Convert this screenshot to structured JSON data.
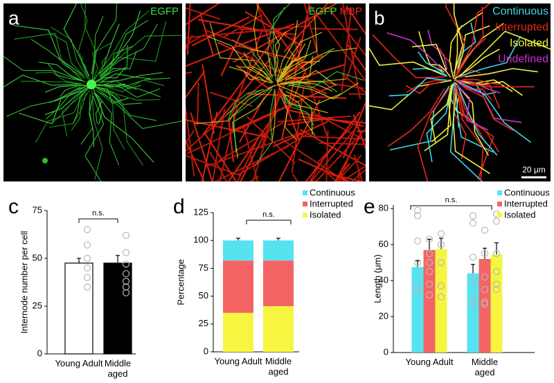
{
  "images": {
    "panel_a": "a",
    "a_label": "EGFP",
    "a_label_color": "#3ee03e",
    "merge_labels": [
      {
        "text": "EGFP",
        "color": "#3ee03e"
      },
      {
        "text": "MBP",
        "color": "#e8281e"
      }
    ],
    "panel_b": "b",
    "b_legend": [
      {
        "text": "Continuous",
        "color": "#3fd8e8"
      },
      {
        "text": "Interrupted",
        "color": "#e8281e"
      },
      {
        "text": "Isolated",
        "color": "#f0f040"
      },
      {
        "text": "Undefined",
        "color": "#d030d0"
      }
    ],
    "scale_bar": "20 μm"
  },
  "chart_data": [
    {
      "panel": "c",
      "type": "bar",
      "ylabel": "Internode number per cell",
      "categories": [
        "Young Adult",
        "Middle aged"
      ],
      "values": [
        47.5,
        47.5
      ],
      "errors": [
        2.5,
        4
      ],
      "colors": [
        "#ffffff",
        "#000000"
      ],
      "edgecolor": "#000000",
      "points": [
        [
          65,
          57,
          50,
          45,
          40,
          35
        ],
        [
          62,
          53,
          47,
          42,
          38,
          35,
          32
        ]
      ],
      "ylim": [
        0,
        75
      ],
      "yticks": [
        0,
        25,
        50,
        75
      ],
      "annotation": "n.s."
    },
    {
      "panel": "d",
      "type": "stacked_bar",
      "ylabel": "Percentage",
      "categories": [
        "Young Adult",
        "Middle aged"
      ],
      "series": [
        {
          "name": "Continuous",
          "color": "#55e3f2",
          "values": [
            18,
            18
          ],
          "errors": [
            2,
            2
          ]
        },
        {
          "name": "Interrupted",
          "color": "#f56464",
          "values": [
            47,
            41
          ],
          "errors": [
            1.5,
            1.5
          ]
        },
        {
          "name": "Isolated",
          "color": "#f6f641",
          "values": [
            35,
            41
          ],
          "errors": [
            2,
            3
          ]
        }
      ],
      "stack_order": [
        2,
        1,
        0
      ],
      "ylim": [
        0,
        125
      ],
      "yticks": [
        0,
        25,
        50,
        75,
        100,
        125
      ],
      "annotation": "n.s."
    },
    {
      "panel": "e",
      "type": "grouped_bar",
      "ylabel": "Length (μm)",
      "categories": [
        "Young Adult",
        "Middle aged"
      ],
      "series": [
        {
          "name": "Continuous",
          "color": "#55e3f2",
          "values": [
            47.5,
            44
          ],
          "errors": [
            3.5,
            5
          ],
          "points": [
            [
              79,
              76,
              62,
              50,
              37,
              34
            ],
            [
              76,
              72,
              53,
              40,
              30,
              27
            ]
          ]
        },
        {
          "name": "Interrupted",
          "color": "#f56464",
          "values": [
            57,
            52
          ],
          "errors": [
            6,
            6
          ],
          "points": [
            [
              63,
              55,
              50,
              45,
              38,
              32
            ],
            [
              68,
              55,
              42,
              35,
              28,
              27
            ]
          ]
        },
        {
          "name": "Isolated",
          "color": "#f6f641",
          "values": [
            57.5,
            54.5
          ],
          "errors": [
            6,
            6.5
          ],
          "points": [
            [
              66,
              60,
              50,
              37,
              31
            ],
            [
              77,
              73,
              55,
              45,
              38,
              35
            ]
          ]
        }
      ],
      "ylim": [
        0,
        82
      ],
      "yticks": [
        0,
        20,
        40,
        60,
        80
      ],
      "annotation": "n.s."
    }
  ]
}
